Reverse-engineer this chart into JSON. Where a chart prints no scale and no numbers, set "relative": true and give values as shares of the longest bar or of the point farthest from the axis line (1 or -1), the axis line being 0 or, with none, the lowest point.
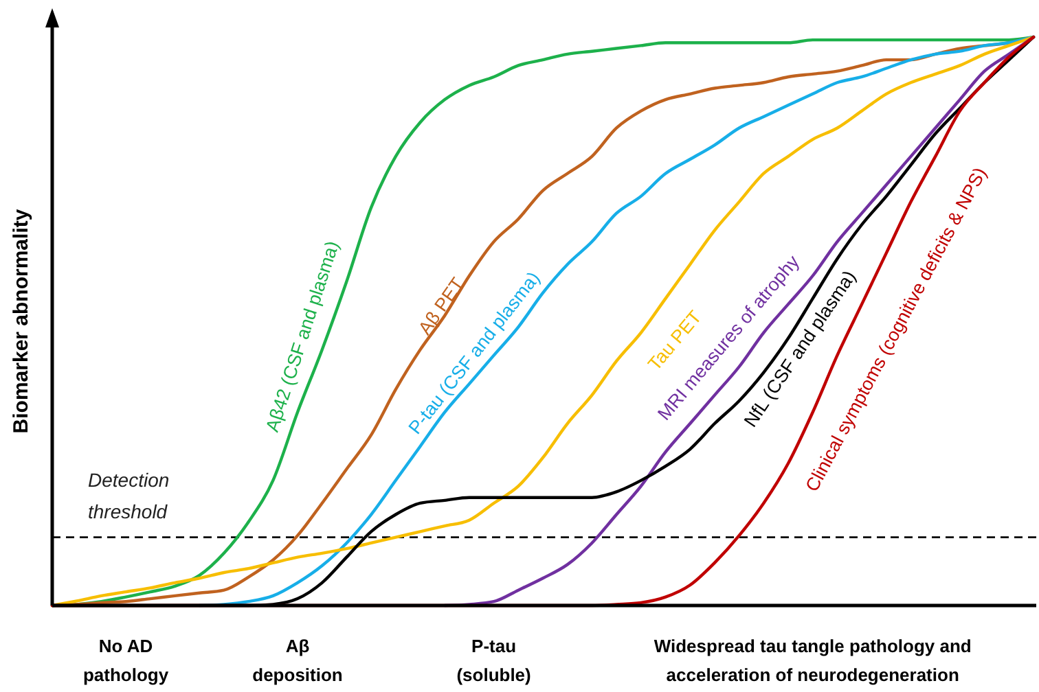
{
  "chart_data": {
    "type": "line",
    "relative": true,
    "ylabel": "Biomarker abnormality",
    "categories": [
      null,
      null,
      null,
      "No AD pathology",
      null,
      null,
      null,
      null,
      null,
      null,
      "Aβ deposition",
      null,
      null,
      null,
      null,
      null,
      null,
      null,
      "P-tau (soluble)",
      null,
      null,
      null,
      null,
      null,
      null,
      null,
      null,
      null,
      null,
      null,
      null,
      "Widespread tau tangle pathology and acceleration of neurodegeneration",
      null,
      null,
      null,
      null,
      null,
      null,
      null,
      null,
      null
    ],
    "series": [
      {
        "name": "Aβ42 (CSF and plasma)",
        "color": "#1db14b",
        "values": [
          0,
          0.002,
          0.007,
          0.015,
          0.024,
          0.034,
          0.053,
          0.092,
          0.147,
          0.22,
          0.34,
          0.45,
          0.57,
          0.7,
          0.79,
          0.85,
          0.89,
          0.915,
          0.93,
          0.95,
          0.96,
          0.97,
          0.975,
          0.98,
          0.985,
          0.99,
          0.99,
          0.99,
          0.99,
          0.99,
          0.99,
          0.995,
          0.995,
          0.995,
          0.995,
          0.995,
          0.995,
          0.995,
          0.995,
          0.995,
          1
        ]
      },
      {
        "name": "Aβ PET",
        "color": "#c0621f",
        "values": [
          0,
          0.002,
          0.005,
          0.007,
          0.012,
          0.017,
          0.022,
          0.027,
          0.05,
          0.08,
          0.123,
          0.18,
          0.24,
          0.3,
          0.38,
          0.45,
          0.51,
          0.58,
          0.64,
          0.68,
          0.73,
          0.76,
          0.79,
          0.84,
          0.87,
          0.89,
          0.9,
          0.91,
          0.915,
          0.92,
          0.93,
          0.935,
          0.94,
          0.95,
          0.96,
          0.96,
          0.97,
          0.98,
          0.985,
          0.99,
          1
        ]
      },
      {
        "name": "P-tau (CSF and plasma)",
        "color": "#17aee8",
        "values": [
          null,
          null,
          null,
          null,
          null,
          null,
          0,
          0.002,
          0.007,
          0.017,
          0.04,
          0.07,
          0.11,
          0.16,
          0.22,
          0.28,
          0.34,
          0.39,
          0.44,
          0.49,
          0.55,
          0.6,
          0.64,
          0.69,
          0.72,
          0.76,
          0.785,
          0.81,
          0.84,
          0.86,
          0.88,
          0.9,
          0.92,
          0.93,
          0.945,
          0.96,
          0.97,
          0.975,
          0.985,
          0.99,
          1
        ]
      },
      {
        "name": "Tau PET",
        "color": "#f7be00",
        "values": [
          0,
          0.008,
          0.017,
          0.024,
          0.031,
          0.04,
          0.048,
          0.058,
          0.065,
          0.075,
          0.085,
          0.092,
          0.1,
          0.11,
          0.12,
          0.13,
          0.14,
          0.15,
          0.18,
          0.21,
          0.26,
          0.32,
          0.37,
          0.43,
          0.48,
          0.54,
          0.6,
          0.66,
          0.71,
          0.76,
          0.79,
          0.82,
          0.84,
          0.87,
          0.9,
          0.92,
          0.935,
          0.95,
          0.97,
          0.985,
          1
        ]
      },
      {
        "name": "MRI measures of atrophy",
        "color": "#7030a0",
        "values": [
          null,
          null,
          null,
          null,
          null,
          null,
          null,
          null,
          null,
          null,
          null,
          null,
          null,
          null,
          null,
          null,
          0,
          0.002,
          0.007,
          0.027,
          0.048,
          0.072,
          0.11,
          0.16,
          0.21,
          0.27,
          0.32,
          0.37,
          0.42,
          0.48,
          0.53,
          0.58,
          0.64,
          0.69,
          0.74,
          0.79,
          0.84,
          0.89,
          0.94,
          0.97,
          1
        ]
      },
      {
        "name": "NfL (CSF and plasma)",
        "color": "#000000",
        "values": [
          0,
          0,
          0,
          0,
          0,
          0,
          0,
          0,
          0,
          0.002,
          0.012,
          0.04,
          0.085,
          0.13,
          0.16,
          0.18,
          0.185,
          0.19,
          0.19,
          0.19,
          0.19,
          0.19,
          0.19,
          0.2,
          0.22,
          0.245,
          0.275,
          0.32,
          0.36,
          0.41,
          0.47,
          0.54,
          0.61,
          0.67,
          0.72,
          0.775,
          0.83,
          0.875,
          0.92,
          0.96,
          1
        ]
      },
      {
        "name": "Clinical symptoms (cognitive deficits & NPS)",
        "color": "#c00000",
        "values": [
          0,
          0,
          0,
          0,
          0,
          0,
          0,
          0,
          0,
          0,
          0,
          0,
          0,
          0,
          0,
          0,
          0,
          0,
          0,
          0,
          0,
          0,
          0,
          0.002,
          0.005,
          0.015,
          0.036,
          0.075,
          0.123,
          0.18,
          0.25,
          0.34,
          0.44,
          0.53,
          0.62,
          0.71,
          0.79,
          0.87,
          0.92,
          0.965,
          1
        ]
      }
    ],
    "ref_lines": [
      {
        "axis": "y",
        "value": 0.12,
        "label": "Detection threshold",
        "color": "#000000",
        "line_style": "dashed"
      }
    ]
  }
}
